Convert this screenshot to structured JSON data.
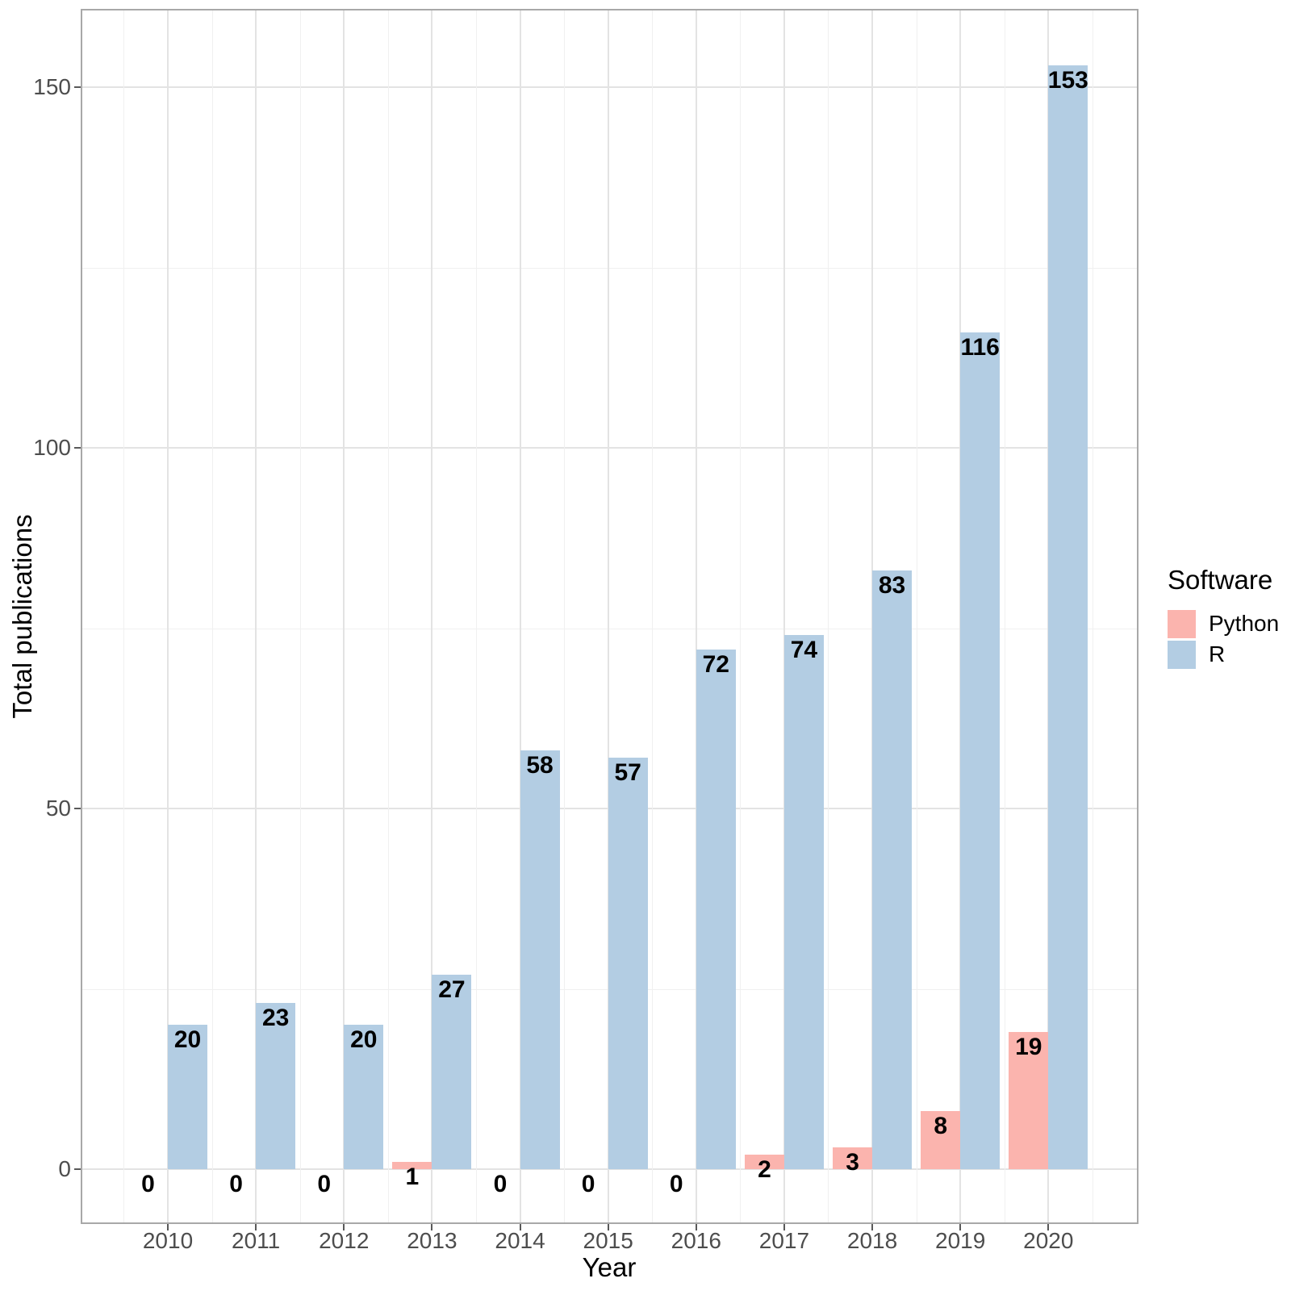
{
  "chart": {
    "x_axis_title": "Year",
    "y_axis_title": "Total publications",
    "legend": {
      "title": "Software",
      "items": [
        {
          "label": "Python",
          "color": "#FBB4AE"
        },
        {
          "label": "R",
          "color": "#B3CDE3"
        }
      ]
    }
  },
  "chart_data": {
    "type": "bar",
    "subtype": "grouped",
    "categories": [
      "2010",
      "2011",
      "2012",
      "2013",
      "2014",
      "2015",
      "2016",
      "2017",
      "2018",
      "2019",
      "2020"
    ],
    "series": [
      {
        "name": "Python",
        "color": "#FBB4AE",
        "values": [
          0,
          0,
          0,
          1,
          0,
          0,
          0,
          2,
          3,
          8,
          19
        ]
      },
      {
        "name": "R",
        "color": "#B3CDE3",
        "values": [
          20,
          23,
          20,
          27,
          58,
          57,
          72,
          74,
          83,
          116,
          153
        ]
      }
    ],
    "xlabel": "Year",
    "ylabel": "Total publications",
    "ylim": [
      0,
      160
    ],
    "y_ticks": [
      0,
      50,
      100,
      150
    ],
    "y_minor_ticks": [
      25,
      75,
      125
    ],
    "bar_value_labels": true,
    "grid": true,
    "legend_position": "right",
    "legend_title": "Software"
  }
}
